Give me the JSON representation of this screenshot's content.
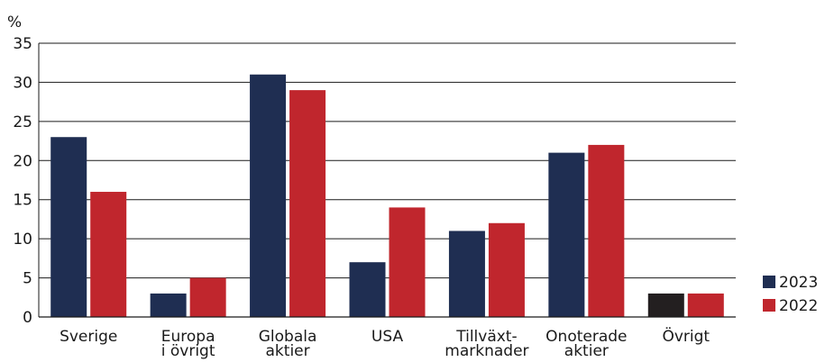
{
  "chart_data": {
    "type": "bar",
    "unit_label": "%",
    "categories": [
      [
        "Sverige"
      ],
      [
        "Europa",
        "i övrigt"
      ],
      [
        "Globala",
        "aktier"
      ],
      [
        "USA"
      ],
      [
        "Tillväxt-",
        "marknader"
      ],
      [
        "Onoterade",
        "aktier"
      ],
      [
        "Övrigt"
      ]
    ],
    "series": [
      {
        "name": "2023",
        "color": "#1f2e52",
        "values": [
          23,
          3,
          31,
          7,
          11,
          21,
          3
        ]
      },
      {
        "name": "2022",
        "color": "#c0262d",
        "values": [
          16,
          5,
          29,
          14,
          12,
          22,
          3
        ]
      }
    ],
    "highlight": {
      "category_index": 6,
      "series_index": 0,
      "color": "#231f20"
    },
    "ylim": [
      0,
      35
    ],
    "yticks": [
      0,
      5,
      10,
      15,
      20,
      25,
      30,
      35
    ],
    "grid": true,
    "legend_position": "bottom-right"
  }
}
